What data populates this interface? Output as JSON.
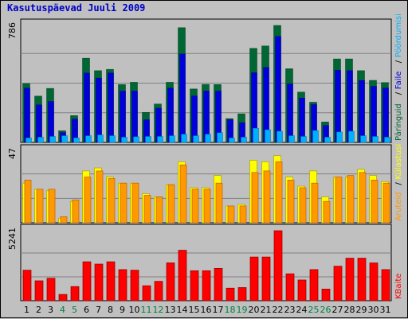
{
  "title": "Kasutuspäevad Juuli 2009",
  "colors": {
    "pages": "#006633",
    "hits": "#0000dd",
    "files": "#00b0ff",
    "visits": "#ff9900",
    "visits_edge": "#c06000",
    "sites": "#ffff00",
    "sites_edge": "#b0a000",
    "kbytes": "#ff0000",
    "kbytes_edge": "#900000",
    "weekend": "#008040",
    "weekday": "#000000"
  },
  "chart_data": {
    "type": "bar",
    "categories": [
      "1",
      "2",
      "3",
      "4",
      "5",
      "6",
      "7",
      "8",
      "9",
      "10",
      "11",
      "12",
      "13",
      "14",
      "15",
      "16",
      "17",
      "18",
      "19",
      "20",
      "21",
      "22",
      "23",
      "24",
      "25",
      "26",
      "27",
      "28",
      "29",
      "30",
      "31"
    ],
    "weekend_days": [
      "4",
      "5",
      "11",
      "12",
      "18",
      "19",
      "25",
      "26"
    ],
    "panels": [
      {
        "id": "hits-panel",
        "ymax_label": "786",
        "ylim": [
          0,
          786
        ],
        "legend": [
          "Päringuid",
          "Faile",
          "Pöördumisi"
        ],
        "legend_colors": [
          "#006633",
          "#0000dd",
          "#00b0ff"
        ],
        "series": [
          {
            "name": "Päringuid",
            "color": "#006633",
            "values": [
              395,
              311,
              363,
              78,
              180,
              566,
              482,
              491,
              389,
              404,
              202,
              258,
              404,
              771,
              359,
              390,
              389,
              160,
              192,
              632,
              648,
              786,
              495,
              338,
              270,
              137,
              561,
              561,
              482,
              417,
              402
            ]
          },
          {
            "name": "Faile",
            "color": "#0000dd",
            "values": [
              365,
              252,
              275,
              66,
              157,
              466,
              432,
              466,
              345,
              345,
              152,
              230,
              365,
              594,
              312,
              345,
              345,
              152,
              132,
              468,
              504,
              712,
              393,
              298,
              254,
              114,
              485,
              482,
              416,
              377,
              366
            ]
          },
          {
            "name": "Pöördumisi",
            "color": "#00b0ff",
            "values": [
              30,
              35,
              40,
              45,
              30,
              45,
              50,
              45,
              35,
              38,
              40,
              40,
              45,
              55,
              45,
              55,
              65,
              30,
              35,
              95,
              85,
              75,
              45,
              40,
              80,
              35,
              70,
              75,
              45,
              40,
              35
            ]
          }
        ]
      },
      {
        "id": "visits-panel",
        "ymax_label": "47",
        "ylim": [
          0,
          47
        ],
        "legend": [
          "Aruteid",
          "Külastusi"
        ],
        "legend_colors": [
          "#ff9900",
          "#ffff00"
        ],
        "series": [
          {
            "name": "Külastusi",
            "color": "#ffff00",
            "values": [
              26,
              22,
              21,
              3,
              14,
              34,
              36,
              30,
              26,
              26,
              19,
              17,
              25,
              40,
              23,
              23,
              31,
              11,
              12,
              41,
              40,
              44,
              30,
              24,
              34,
              17,
              30,
              30,
              35,
              31,
              27
            ]
          },
          {
            "name": "Aruteid",
            "color": "#ff9900",
            "values": [
              28,
              22,
              22,
              4,
              15,
              30,
              34,
              29,
              26,
              26,
              18,
              17,
              25,
              38,
              22,
              22,
              26,
              11,
              11,
              33,
              34,
              40,
              28,
              23,
              26,
              14,
              30,
              31,
              33,
              28,
              26
            ]
          }
        ]
      },
      {
        "id": "kbytes-panel",
        "ymax_label": "5241",
        "ylim": [
          0,
          5241
        ],
        "legend": [
          "KBaite"
        ],
        "legend_colors": [
          "#ff0000"
        ],
        "series": [
          {
            "name": "KBaite",
            "color": "#ff0000",
            "values": [
              2285,
              1490,
              1680,
              470,
              1060,
              2915,
              2740,
              2915,
              2330,
              2285,
              1120,
              1450,
              2835,
              3780,
              2245,
              2245,
              2420,
              940,
              985,
              3270,
              3270,
              5241,
              2015,
              1550,
              2330,
              870,
              2585,
              3185,
              3185,
              2830,
              2330
            ]
          }
        ]
      }
    ]
  }
}
